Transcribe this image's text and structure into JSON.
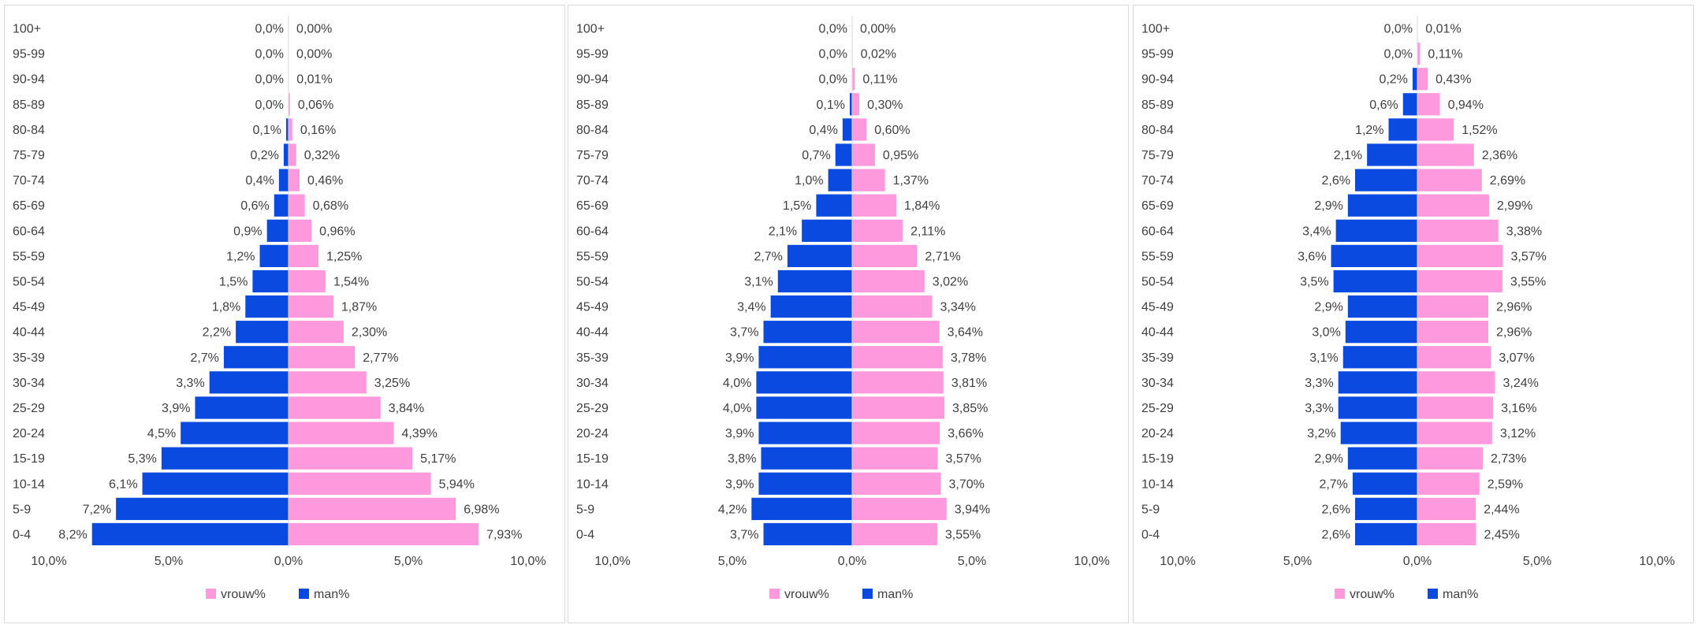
{
  "colors": {
    "vrouw": "#ff99dd",
    "man": "#0a4ae0",
    "axis": "#d9d9d9",
    "text": "#404040"
  },
  "chart_data": [
    {
      "type": "bar",
      "orientation": "horizontal-population-pyramid",
      "title": "",
      "categories": [
        "0-4",
        "5-9",
        "10-14",
        "15-19",
        "20-24",
        "25-29",
        "30-34",
        "35-39",
        "40-44",
        "45-49",
        "50-54",
        "55-59",
        "60-64",
        "65-69",
        "70-74",
        "75-79",
        "80-84",
        "85-89",
        "90-94",
        "95-99",
        "100+"
      ],
      "xlim": [
        -10,
        10
      ],
      "x_ticks": [
        -10,
        -5,
        0,
        5,
        10
      ],
      "x_tick_labels": [
        "10,0%",
        "5,0%",
        "0,0%",
        "5,0%",
        "10,0%"
      ],
      "legend": {
        "placement": "bottom",
        "entries": [
          "vrouw%",
          "man%"
        ]
      },
      "series": [
        {
          "name": "vrouw%",
          "side": "right",
          "values": [
            7.93,
            6.98,
            5.94,
            5.17,
            4.39,
            3.84,
            3.25,
            2.77,
            2.3,
            1.87,
            1.54,
            1.25,
            0.96,
            0.68,
            0.46,
            0.32,
            0.16,
            0.06,
            0.01,
            0.0,
            0.0
          ],
          "labels": [
            "7,93%",
            "6,98%",
            "5,94%",
            "5,17%",
            "4,39%",
            "3,84%",
            "3,25%",
            "2,77%",
            "2,30%",
            "1,87%",
            "1,54%",
            "1,25%",
            "0,96%",
            "0,68%",
            "0,46%",
            "0,32%",
            "0,16%",
            "0,06%",
            "0,01%",
            "0,00%",
            "0,00%"
          ]
        },
        {
          "name": "man%",
          "side": "left",
          "values": [
            8.2,
            7.2,
            6.1,
            5.3,
            4.5,
            3.9,
            3.3,
            2.7,
            2.2,
            1.8,
            1.5,
            1.2,
            0.9,
            0.6,
            0.4,
            0.2,
            0.1,
            0.0,
            0.0,
            0.0,
            0.0
          ],
          "labels": [
            "8,2%",
            "7,2%",
            "6,1%",
            "5,3%",
            "4,5%",
            "3,9%",
            "3,3%",
            "2,7%",
            "2,2%",
            "1,8%",
            "1,5%",
            "1,2%",
            "0,9%",
            "0,6%",
            "0,4%",
            "0,2%",
            "0,1%",
            "0,0%",
            "0,0%",
            "0,0%",
            "0,0%"
          ]
        }
      ]
    },
    {
      "type": "bar",
      "orientation": "horizontal-population-pyramid",
      "title": "",
      "categories": [
        "0-4",
        "5-9",
        "10-14",
        "15-19",
        "20-24",
        "25-29",
        "30-34",
        "35-39",
        "40-44",
        "45-49",
        "50-54",
        "55-59",
        "60-64",
        "65-69",
        "70-74",
        "75-79",
        "80-84",
        "85-89",
        "90-94",
        "95-99",
        "100+"
      ],
      "xlim": [
        -10,
        10
      ],
      "x_ticks": [
        -10,
        -5,
        0,
        5,
        10
      ],
      "x_tick_labels": [
        "10,0%",
        "5,0%",
        "0,0%",
        "5,0%",
        "10,0%"
      ],
      "legend": {
        "placement": "bottom",
        "entries": [
          "vrouw%",
          "man%"
        ]
      },
      "series": [
        {
          "name": "vrouw%",
          "side": "right",
          "values": [
            3.55,
            3.94,
            3.7,
            3.57,
            3.66,
            3.85,
            3.81,
            3.78,
            3.64,
            3.34,
            3.02,
            2.71,
            2.11,
            1.84,
            1.37,
            0.95,
            0.6,
            0.3,
            0.11,
            0.02,
            0.0
          ],
          "labels": [
            "3,55%",
            "3,94%",
            "3,70%",
            "3,57%",
            "3,66%",
            "3,85%",
            "3,81%",
            "3,78%",
            "3,64%",
            "3,34%",
            "3,02%",
            "2,71%",
            "2,11%",
            "1,84%",
            "1,37%",
            "0,95%",
            "0,60%",
            "0,30%",
            "0,11%",
            "0,02%",
            "0,00%"
          ]
        },
        {
          "name": "man%",
          "side": "left",
          "values": [
            3.7,
            4.2,
            3.9,
            3.8,
            3.9,
            4.0,
            4.0,
            3.9,
            3.7,
            3.4,
            3.1,
            2.7,
            2.1,
            1.5,
            1.0,
            0.7,
            0.4,
            0.1,
            0.0,
            0.0,
            0.0
          ],
          "labels": [
            "3,7%",
            "4,2%",
            "3,9%",
            "3,8%",
            "3,9%",
            "4,0%",
            "4,0%",
            "3,9%",
            "3,7%",
            "3,4%",
            "3,1%",
            "2,7%",
            "2,1%",
            "1,5%",
            "1,0%",
            "0,7%",
            "0,4%",
            "0,1%",
            "0,0%",
            "0,0%",
            "0,0%"
          ]
        }
      ]
    },
    {
      "type": "bar",
      "orientation": "horizontal-population-pyramid",
      "title": "",
      "categories": [
        "0-4",
        "5-9",
        "10-14",
        "15-19",
        "20-24",
        "25-29",
        "30-34",
        "35-39",
        "40-44",
        "45-49",
        "50-54",
        "55-59",
        "60-64",
        "65-69",
        "70-74",
        "75-79",
        "80-84",
        "85-89",
        "90-94",
        "95-99",
        "100+"
      ],
      "xlim": [
        -10,
        10
      ],
      "x_ticks": [
        -10,
        -5,
        0,
        5,
        10
      ],
      "x_tick_labels": [
        "10,0%",
        "5,0%",
        "0,0%",
        "5,0%",
        "10,0%"
      ],
      "legend": {
        "placement": "bottom",
        "entries": [
          "vrouw%",
          "man%"
        ]
      },
      "series": [
        {
          "name": "vrouw%",
          "side": "right",
          "values": [
            2.45,
            2.44,
            2.59,
            2.73,
            3.12,
            3.16,
            3.24,
            3.07,
            2.96,
            2.96,
            3.55,
            3.57,
            3.38,
            2.99,
            2.69,
            2.36,
            1.52,
            0.94,
            0.43,
            0.11,
            0.01
          ],
          "labels": [
            "2,45%",
            "2,44%",
            "2,59%",
            "2,73%",
            "3,12%",
            "3,16%",
            "3,24%",
            "3,07%",
            "2,96%",
            "2,96%",
            "3,55%",
            "3,57%",
            "3,38%",
            "2,99%",
            "2,69%",
            "2,36%",
            "1,52%",
            "0,94%",
            "0,43%",
            "0,11%",
            "0,01%"
          ]
        },
        {
          "name": "man%",
          "side": "left",
          "values": [
            2.6,
            2.6,
            2.7,
            2.9,
            3.2,
            3.3,
            3.3,
            3.1,
            3.0,
            2.9,
            3.5,
            3.6,
            3.4,
            2.9,
            2.6,
            2.1,
            1.2,
            0.6,
            0.2,
            0.0,
            0.0
          ],
          "labels": [
            "2,6%",
            "2,6%",
            "2,7%",
            "2,9%",
            "3,2%",
            "3,3%",
            "3,3%",
            "3,1%",
            "3,0%",
            "2,9%",
            "3,5%",
            "3,6%",
            "3,4%",
            "2,9%",
            "2,6%",
            "2,1%",
            "1,2%",
            "0,6%",
            "0,2%",
            "0,0%",
            "0,0%"
          ]
        }
      ]
    }
  ]
}
